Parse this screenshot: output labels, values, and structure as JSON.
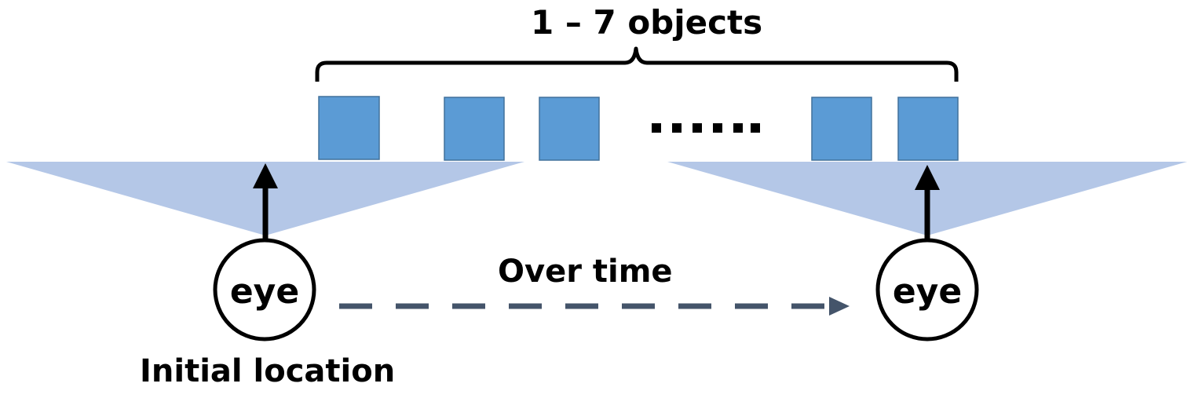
{
  "diagram": {
    "title": "1 – 7 objects",
    "motion_label": "Over time",
    "start_label": "Initial location",
    "eye_left_label": "eye",
    "eye_right_label": "eye",
    "ellipsis": "......",
    "colors": {
      "object_fill": "#5b9bd5",
      "object_stroke": "#41719c",
      "view_cone": "#b4c7e7",
      "dashed_arrow": "#44546a",
      "ink": "#000000"
    }
  }
}
